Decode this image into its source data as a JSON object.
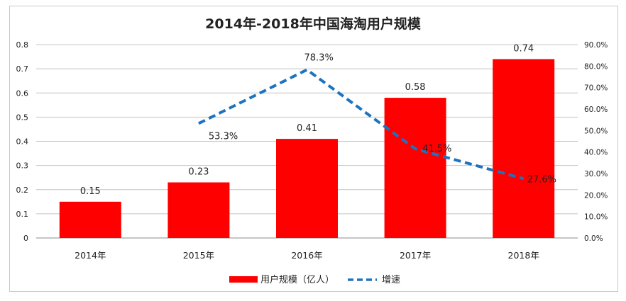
{
  "chart_data": {
    "type": "bar",
    "title": "2014年-2018年中国海淘用户规模",
    "categories": [
      "2014年",
      "2015年",
      "2016年",
      "2017年",
      "2018年"
    ],
    "series": [
      {
        "name": "用户规模（亿人）",
        "type": "bar",
        "axis": "left",
        "color": "#ff0000",
        "values": [
          0.15,
          0.23,
          0.41,
          0.58,
          0.74
        ],
        "labels": [
          "0.15",
          "0.23",
          "0.41",
          "0.58",
          "0.74"
        ]
      },
      {
        "name": "增速",
        "type": "line",
        "axis": "right",
        "style": "dashed",
        "color": "#1e73be",
        "values": [
          null,
          53.3,
          78.3,
          41.5,
          27.6
        ],
        "labels": [
          "",
          "53.3%",
          "78.3%",
          "41.5%",
          "27.6%"
        ]
      }
    ],
    "y_left": {
      "ylim": [
        0,
        0.8
      ],
      "ticks": [
        "0",
        "0.1",
        "0.2",
        "0.3",
        "0.4",
        "0.5",
        "0.6",
        "0.7",
        "0.8"
      ]
    },
    "y_right": {
      "ylim": [
        0,
        90
      ],
      "ticks": [
        "0.0%",
        "10.0%",
        "20.0%",
        "30.0%",
        "40.0%",
        "50.0%",
        "60.0%",
        "70.0%",
        "80.0%",
        "90.0%"
      ]
    },
    "grid": true,
    "legend": "bottom-center"
  }
}
